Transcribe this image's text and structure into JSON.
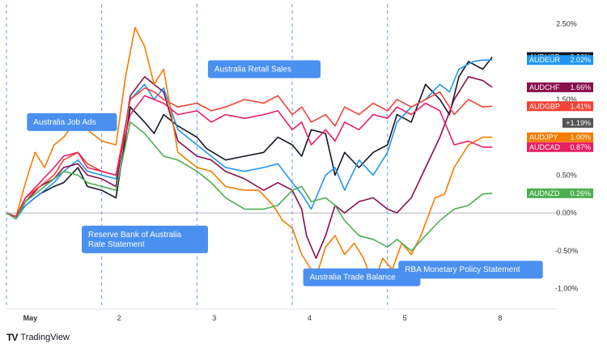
{
  "chart_data": {
    "type": "line",
    "title": "",
    "xlabel": "",
    "ylabel": "",
    "x_ticks": [
      "May",
      "2",
      "3",
      "4",
      "5",
      "8"
    ],
    "y_ticks": [
      "2.50%",
      "1.50%",
      "0.50%",
      "0.00%",
      "-0.50%",
      "-1.00%"
    ],
    "y_tick_values": [
      2.5,
      1.5,
      0.5,
      0.0,
      -0.5,
      -1.0
    ],
    "ylim": [
      -1.25,
      2.6
    ],
    "x_range": [
      0,
      5.2
    ],
    "x_tick_positions": [
      0.25,
      1.25,
      2.25,
      3.25,
      4.25,
      5.25
    ],
    "grid": false,
    "zero_line": true,
    "series": [
      {
        "name": "AUDUSD",
        "badge": "+2.06%",
        "color": "#131722",
        "final": 2.06,
        "points": [
          [
            0,
            0
          ],
          [
            0.1,
            -0.05
          ],
          [
            0.2,
            0.1
          ],
          [
            0.35,
            0.25
          ],
          [
            0.5,
            0.35
          ],
          [
            0.6,
            0.4
          ],
          [
            0.75,
            0.6
          ],
          [
            0.85,
            0.35
          ],
          [
            1.0,
            0.3
          ],
          [
            1.15,
            0.2
          ],
          [
            1.3,
            1.4
          ],
          [
            1.45,
            1.2
          ],
          [
            1.55,
            1.05
          ],
          [
            1.65,
            1.3
          ],
          [
            1.8,
            1.15
          ],
          [
            2.0,
            1.0
          ],
          [
            2.1,
            0.85
          ],
          [
            2.3,
            0.7
          ],
          [
            2.5,
            0.75
          ],
          [
            2.7,
            0.8
          ],
          [
            2.85,
            1.0
          ],
          [
            3.0,
            0.9
          ],
          [
            3.1,
            0.75
          ],
          [
            3.2,
            1.1
          ],
          [
            3.35,
            1.05
          ],
          [
            3.45,
            0.5
          ],
          [
            3.55,
            0.8
          ],
          [
            3.7,
            0.6
          ],
          [
            3.85,
            0.8
          ],
          [
            4.0,
            0.9
          ],
          [
            4.1,
            1.3
          ],
          [
            4.25,
            1.2
          ],
          [
            4.4,
            1.7
          ],
          [
            4.55,
            1.5
          ],
          [
            4.65,
            1.3
          ],
          [
            4.75,
            1.8
          ],
          [
            4.85,
            2.0
          ],
          [
            5.0,
            1.9
          ],
          [
            5.1,
            2.06
          ]
        ]
      },
      {
        "name": "AUDEUR",
        "badge": "2.02%",
        "color": "#2196f3",
        "final": 2.02,
        "points": [
          [
            0,
            0
          ],
          [
            0.1,
            -0.08
          ],
          [
            0.2,
            0.1
          ],
          [
            0.35,
            0.25
          ],
          [
            0.5,
            0.4
          ],
          [
            0.6,
            0.55
          ],
          [
            0.75,
            0.7
          ],
          [
            0.85,
            0.55
          ],
          [
            1.0,
            0.5
          ],
          [
            1.15,
            0.45
          ],
          [
            1.3,
            1.5
          ],
          [
            1.45,
            1.7
          ],
          [
            1.55,
            1.5
          ],
          [
            1.65,
            1.65
          ],
          [
            1.8,
            1.1
          ],
          [
            2.0,
            0.9
          ],
          [
            2.15,
            0.75
          ],
          [
            2.3,
            0.6
          ],
          [
            2.5,
            0.55
          ],
          [
            2.7,
            0.6
          ],
          [
            2.85,
            0.65
          ],
          [
            3.0,
            0.4
          ],
          [
            3.1,
            0.25
          ],
          [
            3.2,
            0.05
          ],
          [
            3.35,
            0.5
          ],
          [
            3.45,
            0.6
          ],
          [
            3.55,
            0.3
          ],
          [
            3.7,
            0.7
          ],
          [
            3.85,
            0.5
          ],
          [
            4.0,
            0.8
          ],
          [
            4.1,
            1.2
          ],
          [
            4.25,
            1.4
          ],
          [
            4.4,
            1.5
          ],
          [
            4.55,
            1.7
          ],
          [
            4.65,
            1.6
          ],
          [
            4.75,
            1.9
          ],
          [
            4.9,
            2.0
          ],
          [
            5.0,
            2.02
          ],
          [
            5.1,
            2.02
          ]
        ]
      },
      {
        "name": "AUDCHF",
        "badge": "1.66%",
        "color": "#880e4f",
        "final": 1.66,
        "points": [
          [
            0,
            0
          ],
          [
            0.1,
            -0.05
          ],
          [
            0.2,
            0.15
          ],
          [
            0.35,
            0.35
          ],
          [
            0.5,
            0.45
          ],
          [
            0.6,
            0.6
          ],
          [
            0.75,
            0.65
          ],
          [
            0.85,
            0.5
          ],
          [
            1.0,
            0.45
          ],
          [
            1.15,
            0.35
          ],
          [
            1.3,
            1.55
          ],
          [
            1.45,
            1.8
          ],
          [
            1.55,
            1.7
          ],
          [
            1.65,
            1.6
          ],
          [
            1.8,
            0.95
          ],
          [
            2.0,
            0.75
          ],
          [
            2.15,
            0.7
          ],
          [
            2.3,
            0.55
          ],
          [
            2.5,
            0.45
          ],
          [
            2.7,
            0.3
          ],
          [
            2.85,
            0.4
          ],
          [
            3.0,
            0.3
          ],
          [
            3.1,
            0.05
          ],
          [
            3.15,
            -0.3
          ],
          [
            3.25,
            -0.6
          ],
          [
            3.35,
            -0.3
          ],
          [
            3.45,
            0.1
          ],
          [
            3.55,
            0.0
          ],
          [
            3.7,
            0.15
          ],
          [
            3.85,
            0.2
          ],
          [
            4.0,
            0.05
          ],
          [
            4.1,
            0.0
          ],
          [
            4.25,
            0.2
          ],
          [
            4.4,
            0.6
          ],
          [
            4.55,
            1.0
          ],
          [
            4.7,
            1.5
          ],
          [
            4.85,
            1.8
          ],
          [
            5.0,
            1.75
          ],
          [
            5.1,
            1.66
          ]
        ]
      },
      {
        "name": "AUDGBP",
        "badge": "1.41%",
        "color": "#f44336",
        "final": 1.41,
        "points": [
          [
            0,
            0
          ],
          [
            0.1,
            -0.05
          ],
          [
            0.2,
            0.2
          ],
          [
            0.35,
            0.35
          ],
          [
            0.5,
            0.5
          ],
          [
            0.6,
            0.7
          ],
          [
            0.75,
            0.8
          ],
          [
            0.85,
            0.65
          ],
          [
            1.0,
            0.55
          ],
          [
            1.15,
            0.5
          ],
          [
            1.3,
            1.5
          ],
          [
            1.45,
            1.65
          ],
          [
            1.55,
            1.6
          ],
          [
            1.65,
            1.5
          ],
          [
            1.8,
            1.4
          ],
          [
            2.0,
            1.45
          ],
          [
            2.15,
            1.35
          ],
          [
            2.3,
            1.4
          ],
          [
            2.5,
            1.5
          ],
          [
            2.7,
            1.45
          ],
          [
            2.85,
            1.55
          ],
          [
            3.0,
            1.3
          ],
          [
            3.1,
            1.4
          ],
          [
            3.2,
            1.2
          ],
          [
            3.35,
            1.3
          ],
          [
            3.45,
            1.15
          ],
          [
            3.55,
            1.4
          ],
          [
            3.7,
            1.3
          ],
          [
            3.85,
            1.45
          ],
          [
            4.0,
            1.35
          ],
          [
            4.1,
            1.5
          ],
          [
            4.25,
            1.4
          ],
          [
            4.4,
            1.5
          ],
          [
            4.55,
            1.6
          ],
          [
            4.7,
            1.3
          ],
          [
            4.85,
            1.5
          ],
          [
            5.0,
            1.4
          ],
          [
            5.1,
            1.41
          ]
        ]
      },
      {
        "name": "AUDJPY",
        "badge": "1.00%",
        "color": "#f57c00",
        "final": 1.0,
        "points": [
          [
            0,
            0
          ],
          [
            0.1,
            -0.05
          ],
          [
            0.2,
            0.4
          ],
          [
            0.3,
            0.8
          ],
          [
            0.4,
            0.6
          ],
          [
            0.5,
            0.9
          ],
          [
            0.6,
            1.0
          ],
          [
            0.75,
            1.25
          ],
          [
            0.85,
            1.1
          ],
          [
            1.0,
            0.95
          ],
          [
            1.15,
            0.9
          ],
          [
            1.25,
            1.8
          ],
          [
            1.35,
            2.45
          ],
          [
            1.45,
            2.2
          ],
          [
            1.55,
            1.7
          ],
          [
            1.65,
            1.9
          ],
          [
            1.8,
            0.8
          ],
          [
            2.0,
            0.6
          ],
          [
            2.15,
            0.55
          ],
          [
            2.3,
            0.35
          ],
          [
            2.5,
            0.3
          ],
          [
            2.65,
            0.3
          ],
          [
            2.8,
            0.1
          ],
          [
            2.9,
            -0.1
          ],
          [
            3.0,
            -0.2
          ],
          [
            3.1,
            -0.55
          ],
          [
            3.25,
            -0.85
          ],
          [
            3.35,
            -0.45
          ],
          [
            3.45,
            -0.3
          ],
          [
            3.55,
            -0.55
          ],
          [
            3.65,
            -0.4
          ],
          [
            3.75,
            -0.6
          ],
          [
            3.85,
            -0.95
          ],
          [
            3.95,
            -0.6
          ],
          [
            4.05,
            -0.75
          ],
          [
            4.15,
            -0.4
          ],
          [
            4.25,
            -0.55
          ],
          [
            4.35,
            -0.3
          ],
          [
            4.5,
            0.2
          ],
          [
            4.6,
            0.25
          ],
          [
            4.7,
            0.6
          ],
          [
            4.85,
            0.9
          ],
          [
            5.0,
            1.0
          ],
          [
            5.1,
            1.0
          ]
        ]
      },
      {
        "name": "AUDCAD",
        "badge": "0.87%",
        "color": "#e91e63",
        "final": 0.87,
        "points": [
          [
            0,
            0
          ],
          [
            0.1,
            -0.05
          ],
          [
            0.2,
            0.2
          ],
          [
            0.35,
            0.4
          ],
          [
            0.5,
            0.6
          ],
          [
            0.6,
            0.75
          ],
          [
            0.75,
            0.8
          ],
          [
            0.85,
            0.6
          ],
          [
            1.0,
            0.55
          ],
          [
            1.15,
            0.5
          ],
          [
            1.3,
            1.3
          ],
          [
            1.45,
            1.55
          ],
          [
            1.55,
            1.5
          ],
          [
            1.65,
            1.45
          ],
          [
            1.8,
            1.3
          ],
          [
            2.0,
            1.35
          ],
          [
            2.15,
            1.2
          ],
          [
            2.3,
            1.3
          ],
          [
            2.5,
            1.25
          ],
          [
            2.7,
            1.3
          ],
          [
            2.85,
            1.35
          ],
          [
            3.0,
            1.1
          ],
          [
            3.1,
            1.2
          ],
          [
            3.2,
            0.9
          ],
          [
            3.35,
            1.1
          ],
          [
            3.45,
            0.95
          ],
          [
            3.55,
            1.2
          ],
          [
            3.7,
            1.1
          ],
          [
            3.85,
            1.3
          ],
          [
            4.0,
            1.25
          ],
          [
            4.1,
            1.4
          ],
          [
            4.25,
            1.3
          ],
          [
            4.4,
            1.45
          ],
          [
            4.55,
            1.35
          ],
          [
            4.7,
            0.9
          ],
          [
            4.85,
            0.95
          ],
          [
            5.0,
            0.87
          ],
          [
            5.1,
            0.87
          ]
        ]
      },
      {
        "name": "AUDNZD",
        "badge": "0.26%",
        "color": "#4caf50",
        "final": 0.26,
        "points": [
          [
            0,
            0
          ],
          [
            0.1,
            -0.08
          ],
          [
            0.2,
            0.15
          ],
          [
            0.35,
            0.3
          ],
          [
            0.5,
            0.45
          ],
          [
            0.6,
            0.55
          ],
          [
            0.75,
            0.5
          ],
          [
            0.85,
            0.4
          ],
          [
            1.0,
            0.35
          ],
          [
            1.15,
            0.3
          ],
          [
            1.3,
            1.2
          ],
          [
            1.45,
            1.05
          ],
          [
            1.55,
            0.9
          ],
          [
            1.65,
            0.75
          ],
          [
            1.8,
            0.7
          ],
          [
            2.0,
            0.55
          ],
          [
            2.15,
            0.4
          ],
          [
            2.3,
            0.2
          ],
          [
            2.5,
            0.05
          ],
          [
            2.7,
            0.05
          ],
          [
            2.85,
            0.1
          ],
          [
            3.0,
            0.3
          ],
          [
            3.1,
            0.35
          ],
          [
            3.2,
            0.15
          ],
          [
            3.35,
            0.2
          ],
          [
            3.45,
            0.1
          ],
          [
            3.55,
            -0.1
          ],
          [
            3.7,
            -0.3
          ],
          [
            3.85,
            -0.35
          ],
          [
            4.0,
            -0.45
          ],
          [
            4.1,
            -0.35
          ],
          [
            4.25,
            -0.5
          ],
          [
            4.4,
            -0.3
          ],
          [
            4.55,
            -0.1
          ],
          [
            4.7,
            0.05
          ],
          [
            4.85,
            0.1
          ],
          [
            5.0,
            0.25
          ],
          [
            5.1,
            0.26
          ]
        ]
      }
    ],
    "extra_badges": [
      {
        "text": "+1.19%",
        "value": 1.19,
        "color": "#555555"
      }
    ],
    "event_lines_x": [
      0.0,
      1.0,
      2.0,
      3.0,
      4.0
    ],
    "annotations": [
      {
        "text": [
          "Australia Job Ads"
        ],
        "x": 0.3,
        "y": 1.2
      },
      {
        "text": [
          "Reserve Bank of Australia",
          "Rate Statement"
        ],
        "x": 1.3,
        "y": -0.35
      },
      {
        "text": [
          "Australia Retail Sales"
        ],
        "x": 2.2,
        "y": 1.9
      },
      {
        "text": [
          "Australia Trade Balance"
        ],
        "x": 3.2,
        "y": -0.85
      },
      {
        "text": [
          "RBA Monetary Policy Statement"
        ],
        "x": 4.2,
        "y": -0.75
      }
    ]
  },
  "brand": {
    "name": "TradingView",
    "logo": "TV"
  }
}
